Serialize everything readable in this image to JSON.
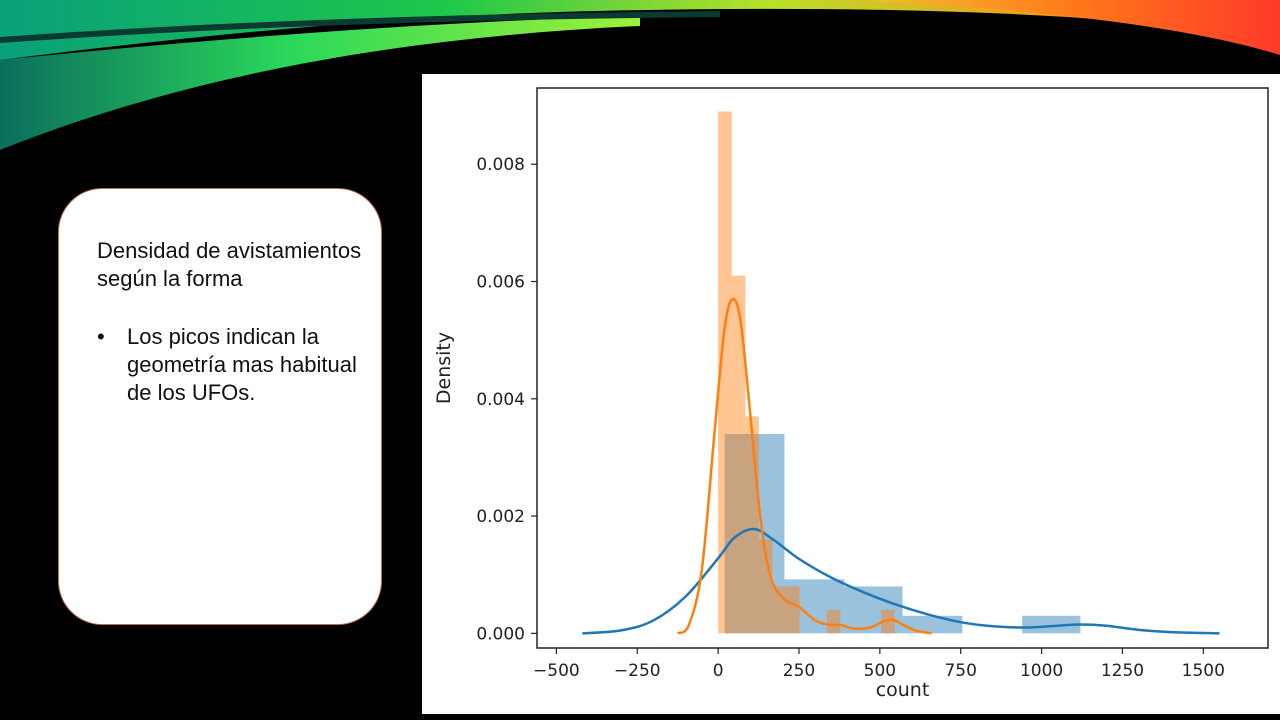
{
  "slide": {
    "heading": "Densidad de avistamientos según la forma",
    "bullets": [
      "Los picos indican la geometría mas habitual de los UFOs."
    ],
    "bullet_char": "•"
  },
  "colors": {
    "blue": "#1f77b4",
    "orange": "#ff7f0e"
  },
  "chart_data": {
    "type": "bar",
    "xlabel": "count",
    "ylabel": "Density",
    "xlim": [
      -560,
      1700
    ],
    "ylim": [
      -0.00025,
      0.0093
    ],
    "xticks": [
      -500,
      -250,
      0,
      250,
      500,
      750,
      1000,
      1250,
      1500
    ],
    "xtick_labels": [
      "−500",
      "−250",
      "0",
      "250",
      "500",
      "750",
      "1000",
      "1250",
      "1500"
    ],
    "yticks": [
      0.0,
      0.002,
      0.004,
      0.006,
      0.008
    ],
    "ytick_labels": [
      "0.000",
      "0.002",
      "0.004",
      "0.006",
      "0.008"
    ],
    "series": [
      {
        "color": "#1f77b4",
        "histogram": [
          {
            "x0": 20,
            "x1": 205,
            "density": 0.0034
          },
          {
            "x0": 205,
            "x1": 390,
            "density": 0.00092
          },
          {
            "x0": 390,
            "x1": 570,
            "density": 0.0008
          },
          {
            "x0": 570,
            "x1": 755,
            "density": 0.0003
          },
          {
            "x0": 755,
            "x1": 940,
            "density": 0.0
          },
          {
            "x0": 940,
            "x1": 1120,
            "density": 0.0003
          }
        ],
        "kde": {
          "x": [
            -420,
            -300,
            -200,
            -100,
            0,
            50,
            110,
            170,
            250,
            350,
            450,
            550,
            650,
            750,
            850,
            950,
            1050,
            1120,
            1200,
            1300,
            1400,
            1550
          ],
          "y": [
            0.0,
            5e-05,
            0.00022,
            0.00063,
            0.00128,
            0.00163,
            0.00178,
            0.0016,
            0.00127,
            0.00095,
            0.0007,
            0.00049,
            0.00032,
            0.00019,
            0.00012,
            0.0001,
            0.00013,
            0.00015,
            0.00013,
            6e-05,
            2e-05,
            0.0
          ]
        }
      },
      {
        "color": "#ff7f0e",
        "histogram": [
          {
            "x0": 0,
            "x1": 42,
            "density": 0.0089
          },
          {
            "x0": 42,
            "x1": 84,
            "density": 0.0061
          },
          {
            "x0": 84,
            "x1": 126,
            "density": 0.0037
          },
          {
            "x0": 126,
            "x1": 168,
            "density": 0.0016
          },
          {
            "x0": 168,
            "x1": 210,
            "density": 0.0008
          },
          {
            "x0": 210,
            "x1": 252,
            "density": 0.0008
          },
          {
            "x0": 336,
            "x1": 378,
            "density": 0.0004
          },
          {
            "x0": 504,
            "x1": 546,
            "density": 0.0004
          }
        ],
        "kde": {
          "x": [
            -125,
            -90,
            -50,
            -10,
            20,
            45,
            70,
            100,
            130,
            160,
            200,
            250,
            300,
            340,
            380,
            420,
            470,
            510,
            540,
            570,
            610,
            660
          ],
          "y": [
            0.0,
            0.00015,
            0.0011,
            0.0035,
            0.0052,
            0.0057,
            0.0053,
            0.0037,
            0.002,
            0.001,
            0.0006,
            0.00045,
            0.00022,
            0.00015,
            0.00014,
            8e-05,
            0.0001,
            0.0002,
            0.00023,
            0.00015,
            5e-05,
            0.0
          ]
        }
      }
    ]
  }
}
